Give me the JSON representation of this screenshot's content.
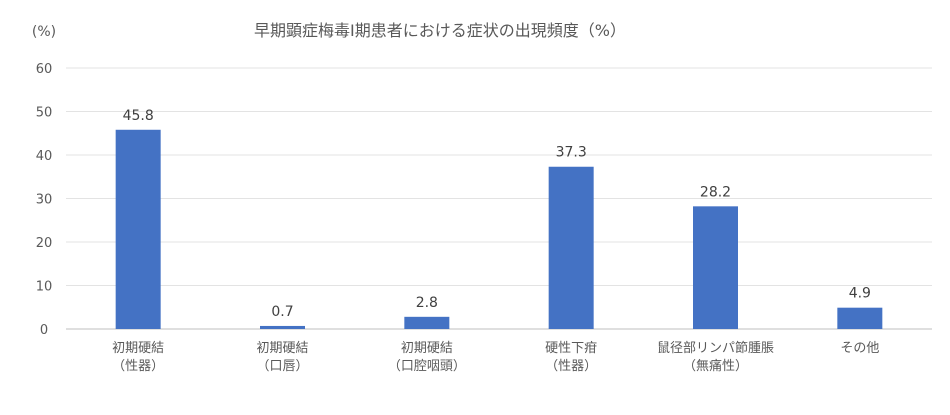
{
  "chart_data": {
    "type": "bar",
    "title": "早期顕症梅毒Ⅰ期患者における症状の出現頻度（%）",
    "ylabel": "(%)",
    "xlabel": "",
    "ylim": [
      0,
      60
    ],
    "yticks": [
      0,
      10,
      20,
      30,
      40,
      50,
      60
    ],
    "grid": true,
    "legend": "none",
    "bar_color": "#4472C4",
    "categories": [
      [
        "初期硬結",
        "（性器）"
      ],
      [
        "初期硬結",
        "（口唇）"
      ],
      [
        "初期硬結",
        "（口腔咽頭）"
      ],
      [
        "硬性下疳",
        "（性器）"
      ],
      [
        "鼠径部リンパ節腫脹",
        "（無痛性）"
      ],
      [
        "その他"
      ]
    ],
    "values": [
      45.8,
      0.7,
      2.8,
      37.3,
      28.2,
      4.9
    ],
    "data_labels": [
      "45.8",
      "0.7",
      "2.8",
      "37.3",
      "28.2",
      "4.9"
    ]
  }
}
